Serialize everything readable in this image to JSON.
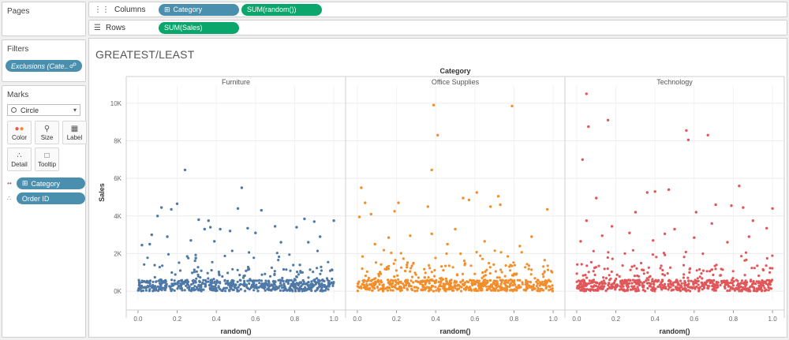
{
  "sidebar": {
    "pages_title": "Pages",
    "filters_title": "Filters",
    "filter_pill": "Exclusions (Cate..",
    "marks_title": "Marks",
    "mark_type": "Circle",
    "buttons": {
      "color": "Color",
      "size": "Size",
      "label": "Label",
      "detail": "Detail",
      "tooltip": "Tooltip"
    },
    "color_field": "Category",
    "detail_field": "Order ID"
  },
  "shelves": {
    "columns_label": "Columns",
    "rows_label": "Rows",
    "columns_pills": [
      "Category",
      "SUM(random())"
    ],
    "rows_pills": [
      "SUM(Sales)"
    ]
  },
  "colors": {
    "blue_pill": "#4a8fae",
    "green_pill": "#0aa66c",
    "Furniture": "#4e79a7",
    "Office Supplies": "#f28e2b",
    "Technology": "#e15759"
  },
  "chart_data": {
    "type": "scatter",
    "title": "GREATEST/LEAST",
    "column_header": "Category",
    "xlabel": "random()",
    "ylabel": "Sales",
    "xlim": [
      -0.06,
      1.06
    ],
    "ylim": [
      -500,
      11000
    ],
    "x_ticks": [
      "0.0",
      "0.2",
      "0.4",
      "0.6",
      "0.8",
      "1.0"
    ],
    "y_ticks": [
      "0K",
      "2K",
      "4K",
      "6K",
      "8K",
      "10K"
    ],
    "grid": true,
    "panels": [
      {
        "name": "Furniture",
        "outliers": [
          [
            0.24,
            6450
          ],
          [
            0.53,
            5500
          ],
          [
            0.2,
            4650
          ],
          [
            0.12,
            4450
          ],
          [
            0.1,
            4000
          ],
          [
            0.17,
            4350
          ],
          [
            0.51,
            4400
          ],
          [
            0.63,
            4300
          ],
          [
            0.31,
            3800
          ],
          [
            0.36,
            3750
          ],
          [
            0.37,
            3400
          ],
          [
            0.34,
            3300
          ],
          [
            0.42,
            3300
          ],
          [
            0.85,
            3850
          ],
          [
            0.9,
            3700
          ],
          [
            1.0,
            3750
          ],
          [
            0.7,
            3450
          ],
          [
            0.81,
            3400
          ],
          [
            0.07,
            3000
          ],
          [
            0.6,
            3100
          ],
          [
            0.47,
            3200
          ],
          [
            0.06,
            2500
          ],
          [
            0.02,
            2450
          ],
          [
            0.27,
            2700
          ],
          [
            0.73,
            2600
          ],
          [
            0.93,
            2900
          ],
          [
            0.56,
            3350
          ],
          [
            0.15,
            2900
          ],
          [
            0.87,
            2600
          ],
          [
            0.39,
            2650
          ]
        ]
      },
      {
        "name": "Office Supplies",
        "outliers": [
          [
            0.39,
            9900
          ],
          [
            0.79,
            9850
          ],
          [
            0.41,
            8300
          ],
          [
            0.38,
            6450
          ],
          [
            0.02,
            5500
          ],
          [
            0.61,
            5250
          ],
          [
            0.72,
            5050
          ],
          [
            0.54,
            4950
          ],
          [
            0.04,
            4700
          ],
          [
            0.57,
            4850
          ],
          [
            0.21,
            4700
          ],
          [
            0.36,
            4500
          ],
          [
            0.73,
            4600
          ],
          [
            0.68,
            4500
          ],
          [
            0.97,
            4350
          ],
          [
            0.07,
            4100
          ],
          [
            0.19,
            4250
          ],
          [
            0.01,
            3950
          ],
          [
            0.5,
            3300
          ],
          [
            0.27,
            2950
          ],
          [
            0.38,
            3050
          ],
          [
            0.65,
            2650
          ],
          [
            0.89,
            2900
          ],
          [
            0.09,
            2500
          ],
          [
            0.16,
            2850
          ],
          [
            0.83,
            2400
          ],
          [
            0.46,
            2500
          ]
        ]
      },
      {
        "name": "Technology",
        "outliers": [
          [
            0.05,
            10500
          ],
          [
            0.16,
            9100
          ],
          [
            0.06,
            8750
          ],
          [
            0.56,
            8550
          ],
          [
            0.67,
            8300
          ],
          [
            0.57,
            8050
          ],
          [
            0.03,
            7000
          ],
          [
            0.4,
            5300
          ],
          [
            0.47,
            5400
          ],
          [
            0.83,
            5600
          ],
          [
            0.36,
            5250
          ],
          [
            0.71,
            4600
          ],
          [
            0.1,
            4950
          ],
          [
            0.61,
            4200
          ],
          [
            0.85,
            4450
          ],
          [
            0.79,
            4550
          ],
          [
            1.0,
            4400
          ],
          [
            0.3,
            4200
          ],
          [
            0.97,
            3350
          ],
          [
            0.18,
            3450
          ],
          [
            0.05,
            3750
          ],
          [
            0.69,
            3600
          ],
          [
            0.9,
            3750
          ],
          [
            0.27,
            3100
          ],
          [
            0.5,
            3300
          ],
          [
            0.45,
            3050
          ],
          [
            0.13,
            2950
          ],
          [
            0.88,
            2900
          ],
          [
            0.6,
            2850
          ],
          [
            0.77,
            2600
          ],
          [
            0.39,
            2700
          ],
          [
            0.02,
            2650
          ]
        ]
      }
    ]
  }
}
